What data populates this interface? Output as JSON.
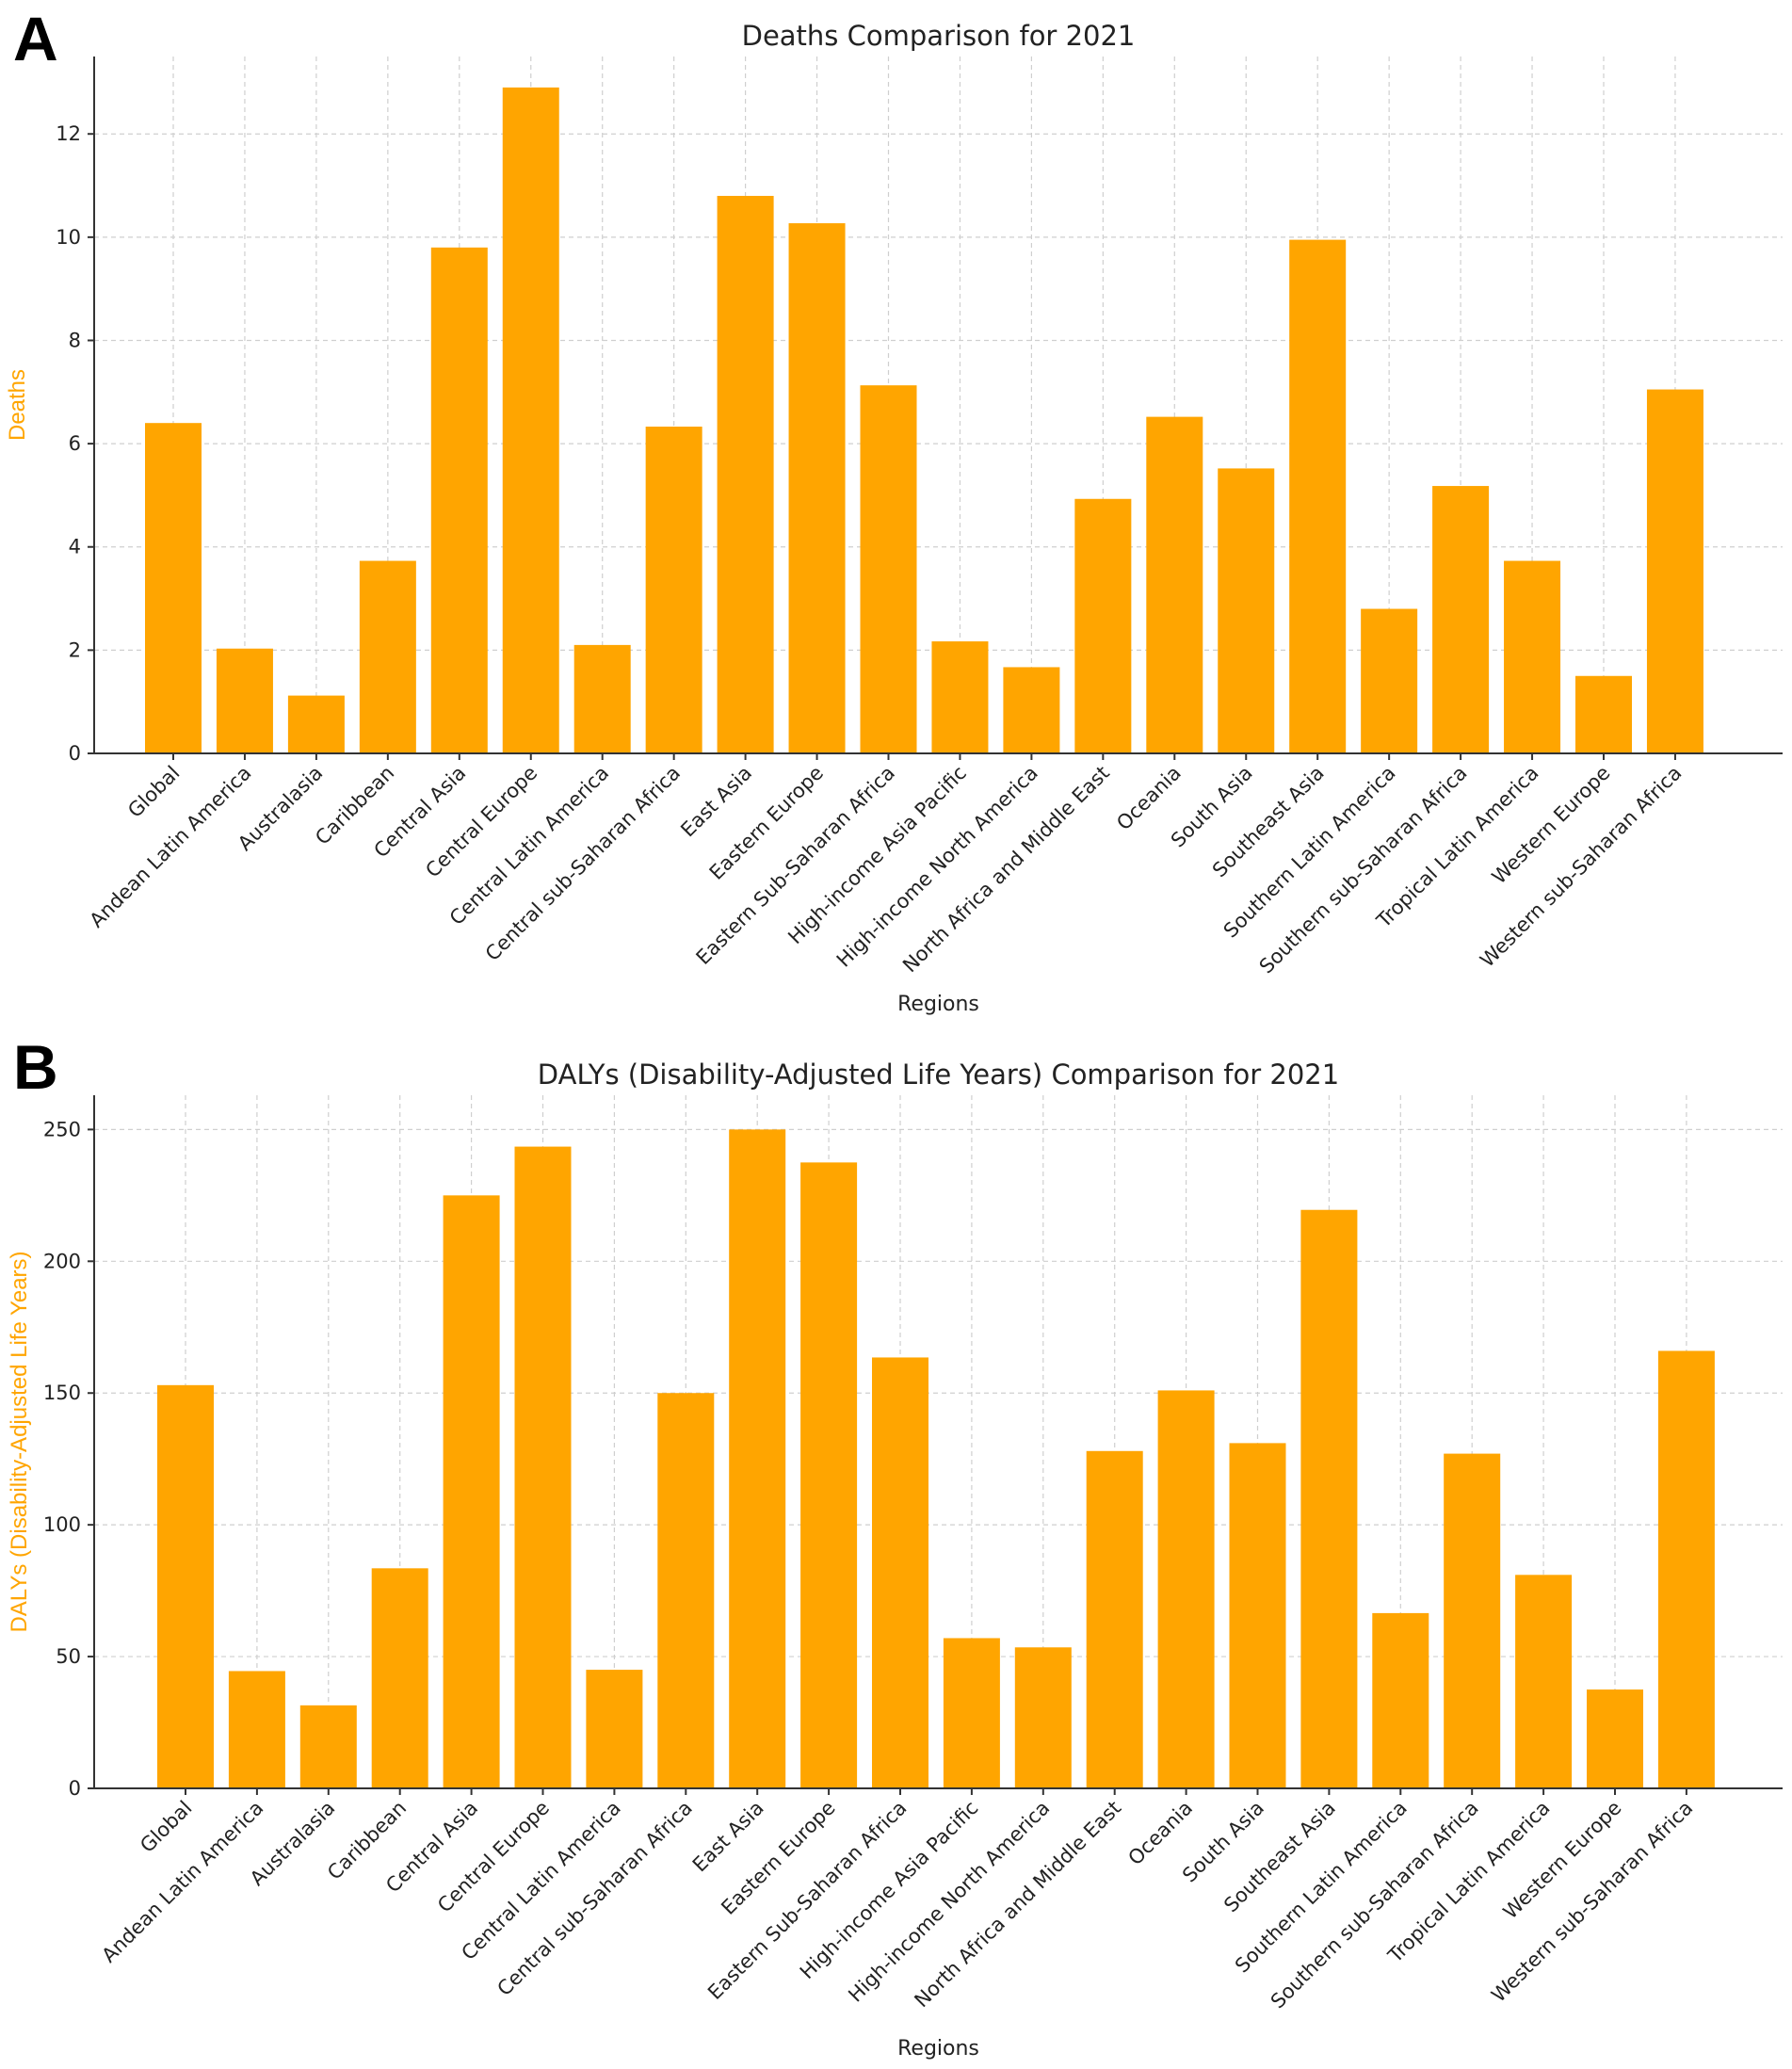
{
  "panels": {
    "a": {
      "letter": "A"
    },
    "b": {
      "letter": "B"
    }
  },
  "colors": {
    "bar": "#FFA500",
    "axis_label": "#FFA500"
  },
  "chart_data": [
    {
      "type": "bar",
      "id": "chart-a",
      "title": "Deaths Comparison for 2021",
      "xlabel": "Regions",
      "ylabel": "Deaths",
      "ylim": [
        0,
        13.5
      ],
      "yticks": [
        0,
        2,
        4,
        6,
        8,
        10,
        12
      ],
      "grid": true,
      "categories": [
        "Global",
        "Andean Latin America",
        "Australasia",
        "Caribbean",
        "Central Asia",
        "Central Europe",
        "Central Latin America",
        "Central sub-Saharan Africa",
        "East Asia",
        "Eastern Europe",
        "Eastern Sub-Saharan Africa",
        "High-income Asia Pacific",
        "High-income North America",
        "North Africa and Middle East",
        "Oceania",
        "South Asia",
        "Southeast Asia",
        "Southern Latin America",
        "Southern sub-Saharan Africa",
        "Tropical Latin America",
        "Western Europe",
        "Western sub-Saharan Africa"
      ],
      "values": [
        6.4,
        2.03,
        1.12,
        3.73,
        9.8,
        12.9,
        2.1,
        6.33,
        10.8,
        10.27,
        7.13,
        2.17,
        1.67,
        4.93,
        6.52,
        5.52,
        9.95,
        2.8,
        5.18,
        3.73,
        1.5,
        7.05
      ]
    },
    {
      "type": "bar",
      "id": "chart-b",
      "title": "DALYs (Disability-Adjusted Life Years) Comparison for 2021",
      "xlabel": "Regions",
      "ylabel": "DALYs (Disability-Adjusted Life Years)",
      "ylim": [
        0,
        263
      ],
      "yticks": [
        0,
        50,
        100,
        150,
        200,
        250
      ],
      "grid": true,
      "categories": [
        "Global",
        "Andean Latin America",
        "Australasia",
        "Caribbean",
        "Central Asia",
        "Central Europe",
        "Central Latin America",
        "Central sub-Saharan Africa",
        "East Asia",
        "Eastern Europe",
        "Eastern Sub-Saharan Africa",
        "High-income Asia Pacific",
        "High-income North America",
        "North Africa and Middle East",
        "Oceania",
        "South Asia",
        "Southeast Asia",
        "Southern Latin America",
        "Southern sub-Saharan Africa",
        "Tropical Latin America",
        "Western Europe",
        "Western sub-Saharan Africa"
      ],
      "values": [
        153,
        44.5,
        31.5,
        83.5,
        225,
        243.5,
        45,
        150,
        250,
        237.5,
        163.5,
        57,
        53.5,
        128,
        151,
        131,
        219.5,
        66.5,
        127,
        81,
        37.5,
        166
      ]
    }
  ]
}
